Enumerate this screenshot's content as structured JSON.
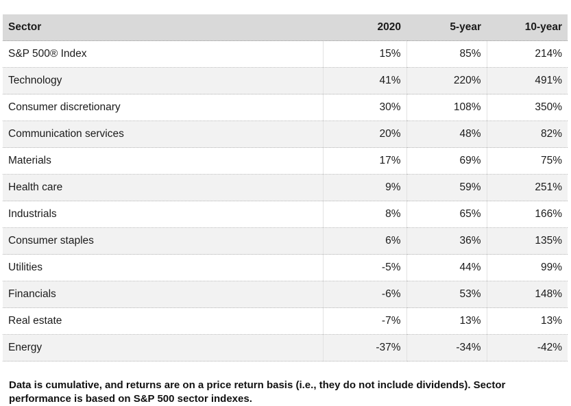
{
  "table": {
    "headers": [
      "Sector",
      "2020",
      "5-year",
      "10-year"
    ],
    "rows": [
      {
        "sector": "S&P 500® Index",
        "y2020": "15%",
        "y5": "85%",
        "y10": "214%"
      },
      {
        "sector": "Technology",
        "y2020": "41%",
        "y5": "220%",
        "y10": "491%"
      },
      {
        "sector": "Consumer discretionary",
        "y2020": "30%",
        "y5": "108%",
        "y10": "350%"
      },
      {
        "sector": "Communication services",
        "y2020": "20%",
        "y5": "48%",
        "y10": "82%"
      },
      {
        "sector": "Materials",
        "y2020": "17%",
        "y5": "69%",
        "y10": "75%"
      },
      {
        "sector": "Health care",
        "y2020": "9%",
        "y5": "59%",
        "y10": "251%"
      },
      {
        "sector": "Industrials",
        "y2020": "8%",
        "y5": "65%",
        "y10": "166%"
      },
      {
        "sector": "Consumer staples",
        "y2020": "6%",
        "y5": "36%",
        "y10": "135%"
      },
      {
        "sector": "Utilities",
        "y2020": "-5%",
        "y5": "44%",
        "y10": "99%"
      },
      {
        "sector": "Financials",
        "y2020": "-6%",
        "y5": "53%",
        "y10": "148%"
      },
      {
        "sector": "Real estate",
        "y2020": "-7%",
        "y5": "13%",
        "y10": "13%"
      },
      {
        "sector": "Energy",
        "y2020": "-37%",
        "y5": "-34%",
        "y10": "-42%"
      }
    ]
  },
  "footnote": "Data is cumulative, and returns are on a price return basis (i.e., they do not include dividends). Sector performance is based on S&P 500 sector indexes."
}
